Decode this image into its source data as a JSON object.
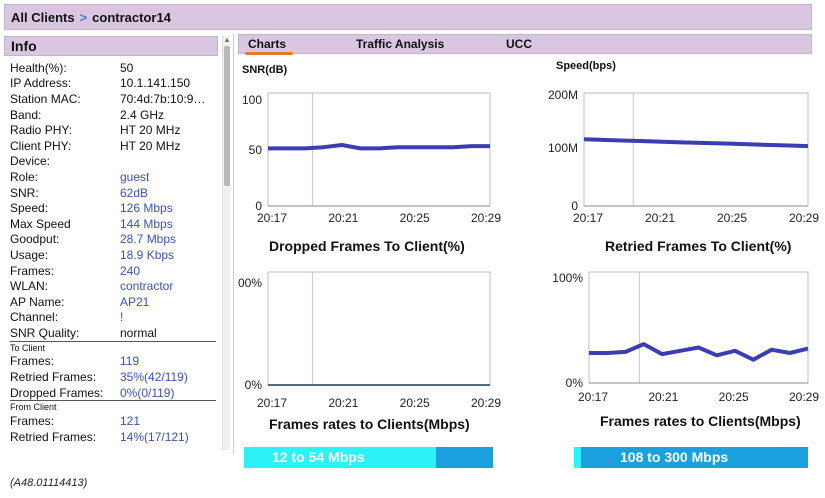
{
  "breadcrumb": {
    "root": "All Clients",
    "separator": ">",
    "current": "contractor14"
  },
  "info": {
    "title": "Info",
    "rows": [
      {
        "k": "Health(%):",
        "v": "50"
      },
      {
        "k": "IP Address:",
        "v": "10.1.141.150"
      },
      {
        "k": "Station MAC:",
        "v": "70:4d:7b:10:9…"
      },
      {
        "k": "Band:",
        "v": "2.4 GHz"
      },
      {
        "k": "Radio PHY:",
        "v": "HT 20 MHz"
      },
      {
        "k": "Client PHY:",
        "v": "HT 20 MHz"
      },
      {
        "k": "Device:",
        "v": ""
      },
      {
        "k": "Role:",
        "v": "guest",
        "link": true
      },
      {
        "k": "SNR:",
        "v": "62dB",
        "link": true
      },
      {
        "k": "Speed:",
        "v": "126 Mbps",
        "link": true
      },
      {
        "k": "Max Speed",
        "v": "144 Mbps",
        "link": true
      },
      {
        "k": "Goodput:",
        "v": "28.7 Mbps",
        "link": true
      },
      {
        "k": "Usage:",
        "v": "18.9 Kbps",
        "link": true
      },
      {
        "k": "Frames:",
        "v": "240",
        "link": true
      },
      {
        "k": "WLAN:",
        "v": "contractor",
        "link": true
      },
      {
        "k": "AP Name:",
        "v": "AP21",
        "link": true
      },
      {
        "k": "Channel:",
        "v": "!",
        "link": true
      },
      {
        "k": "SNR Quality:",
        "v": "normal"
      }
    ],
    "to_client": {
      "label": "To Client",
      "rows": [
        {
          "k": "Frames:",
          "v": "119",
          "link": true
        },
        {
          "k": "Retried Frames:",
          "v": "35%(42/119)",
          "link": true
        },
        {
          "k": "Dropped Frames:",
          "v": "0%(0/119)",
          "link": true
        }
      ]
    },
    "from_client": {
      "label": "From Client",
      "rows": [
        {
          "k": "Frames:",
          "v": "121",
          "link": true
        },
        {
          "k": "Retried Frames:",
          "v": "14%(17/121)",
          "link": true
        }
      ]
    }
  },
  "tabs": [
    {
      "label": "Charts",
      "active": true
    },
    {
      "label": "Traffic Analysis",
      "active": false
    },
    {
      "label": "UCC",
      "active": false
    }
  ],
  "footer": "(A48.01114413)",
  "rate_bars": [
    {
      "label": "12 to 54 Mbps",
      "fill_fraction": 0.77,
      "light": "#2ff2f8",
      "dark": "#1aa0dd"
    },
    {
      "label": "108 to 300 Mbps",
      "fill_fraction": 0.03,
      "light": "#2ff2f8",
      "dark": "#1aa0dd"
    }
  ],
  "chart_data": [
    {
      "type": "line",
      "title": "SNR(dB)",
      "ylabel": "",
      "xlabel": "",
      "xticks": [
        "20:17",
        "20:21",
        "20:25",
        "20:29"
      ],
      "yticks": [
        "0",
        "50",
        "100"
      ],
      "ylim": [
        0,
        100
      ],
      "x": [
        0,
        1,
        2,
        3,
        4,
        5,
        6,
        7,
        8,
        9,
        10,
        11,
        12
      ],
      "series": [
        {
          "values": [
            51,
            51,
            51,
            52,
            54,
            51,
            51,
            52,
            52,
            52,
            52,
            53,
            53
          ],
          "color": "#3b3db3"
        }
      ],
      "grid": "vertical"
    },
    {
      "type": "line",
      "title": "Speed(bps)",
      "ylabel": "",
      "xlabel": "",
      "xticks": [
        "20:17",
        "20:21",
        "20:25",
        "20:29"
      ],
      "yticks": [
        "0",
        "100M",
        "200M"
      ],
      "ylim": [
        0,
        200
      ],
      "x": [
        0,
        1,
        2,
        3,
        4,
        5,
        6,
        7,
        8,
        9,
        10,
        11,
        12
      ],
      "series": [
        {
          "values": [
            118,
            117,
            116,
            115,
            114,
            113,
            112,
            111,
            110,
            109,
            108,
            107,
            106
          ],
          "color": "#3b3db3"
        }
      ],
      "grid": "vertical"
    },
    {
      "type": "line",
      "title": "Dropped Frames To Client(%)",
      "ylabel": "",
      "xlabel": "",
      "xticks": [
        "20:17",
        "20:21",
        "20:25",
        "20:29"
      ],
      "yticks": [
        "0%",
        "00%"
      ],
      "ylim": [
        0,
        100
      ],
      "x": [
        0,
        1,
        2,
        3,
        4,
        5,
        6,
        7,
        8,
        9,
        10,
        11,
        12
      ],
      "series": [
        {
          "values": [
            0,
            0,
            0,
            0,
            0,
            0,
            0,
            0,
            0,
            0,
            0,
            0,
            0
          ],
          "color": "#4a6e8a"
        }
      ],
      "grid": "vertical"
    },
    {
      "type": "line",
      "title": "Retried Frames To Client(%)",
      "ylabel": "",
      "xlabel": "",
      "xticks": [
        "20:17",
        "20:21",
        "20:25",
        "20:29"
      ],
      "yticks": [
        "0%",
        "100%"
      ],
      "ylim": [
        0,
        100
      ],
      "x": [
        0,
        1,
        2,
        3,
        4,
        5,
        6,
        7,
        8,
        9,
        10,
        11,
        12
      ],
      "series": [
        {
          "values": [
            27,
            27,
            28,
            35,
            26,
            29,
            32,
            25,
            29,
            21,
            30,
            27,
            31
          ],
          "color": "#3b3db3"
        }
      ],
      "grid": "vertical"
    }
  ],
  "frames_rate_title_left": "Frames rates to Clients(Mbps)",
  "frames_rate_title_right": "Frames rates to Clients(Mbps)"
}
